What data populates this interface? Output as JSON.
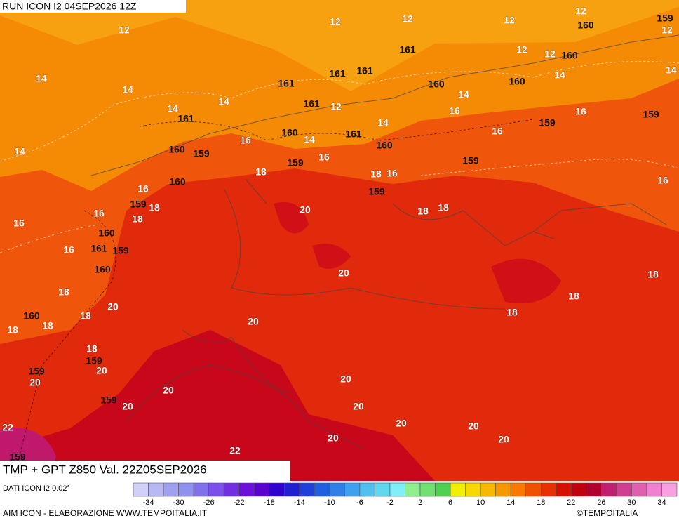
{
  "header": {
    "title": "RUN ICON I2 04SEP2026 12Z"
  },
  "map": {
    "title": "TMP + GPT Z850 Val. 22Z05SEP2026",
    "temperature_labels": [
      "12",
      "12",
      "12",
      "12",
      "12",
      "12",
      "12",
      "12",
      "14",
      "14",
      "14",
      "14",
      "14",
      "12",
      "14",
      "14",
      "16",
      "16",
      "14",
      "16",
      "14",
      "16",
      "14",
      "16",
      "18",
      "18",
      "16",
      "16",
      "16",
      "18",
      "20",
      "18",
      "18",
      "16",
      "18",
      "16",
      "16",
      "20",
      "18",
      "18",
      "18",
      "20",
      "18",
      "18",
      "18",
      "18",
      "20",
      "18",
      "20",
      "20",
      "20",
      "20",
      "20",
      "20",
      "22",
      "20",
      "20",
      "20",
      "20",
      "22"
    ],
    "geopotential_labels": [
      "160",
      "159",
      "161",
      "160",
      "161",
      "161",
      "161",
      "160",
      "160",
      "161",
      "159",
      "161",
      "159",
      "160",
      "161",
      "160",
      "159",
      "160",
      "159",
      "159",
      "160",
      "159",
      "159",
      "160",
      "161",
      "159",
      "160",
      "160",
      "159",
      "159",
      "159",
      "159"
    ]
  },
  "legend": {
    "source": "DATI ICON I2 0.02°",
    "colors": [
      "#d0d0f8",
      "#b8b8f4",
      "#a0a0f0",
      "#9090ee",
      "#8070ec",
      "#7a50e8",
      "#7030e0",
      "#6a10d8",
      "#5a00d0",
      "#3000d0",
      "#2020d0",
      "#2040d8",
      "#2060e0",
      "#3080e8",
      "#40a0f0",
      "#50c0f0",
      "#60d8f0",
      "#80f0f8",
      "#90f090",
      "#70e070",
      "#50d050",
      "#f0f000",
      "#f8d800",
      "#f8b800",
      "#f89800",
      "#f87800",
      "#f05000",
      "#e83000",
      "#d81000",
      "#c00010",
      "#b00030",
      "#c02070",
      "#d04090",
      "#e060b0",
      "#f080d0",
      "#f8a0e0"
    ],
    "ticks": [
      -34,
      -30,
      -26,
      -22,
      -18,
      -14,
      -10,
      -6,
      -2,
      2,
      6,
      10,
      14,
      18,
      22,
      26,
      30,
      34
    ]
  },
  "footer": {
    "credit": "AIM ICON - ELABORAZIONE WWW.TEMPOITALIA.IT",
    "copyright": "©TEMPOITALIA"
  }
}
